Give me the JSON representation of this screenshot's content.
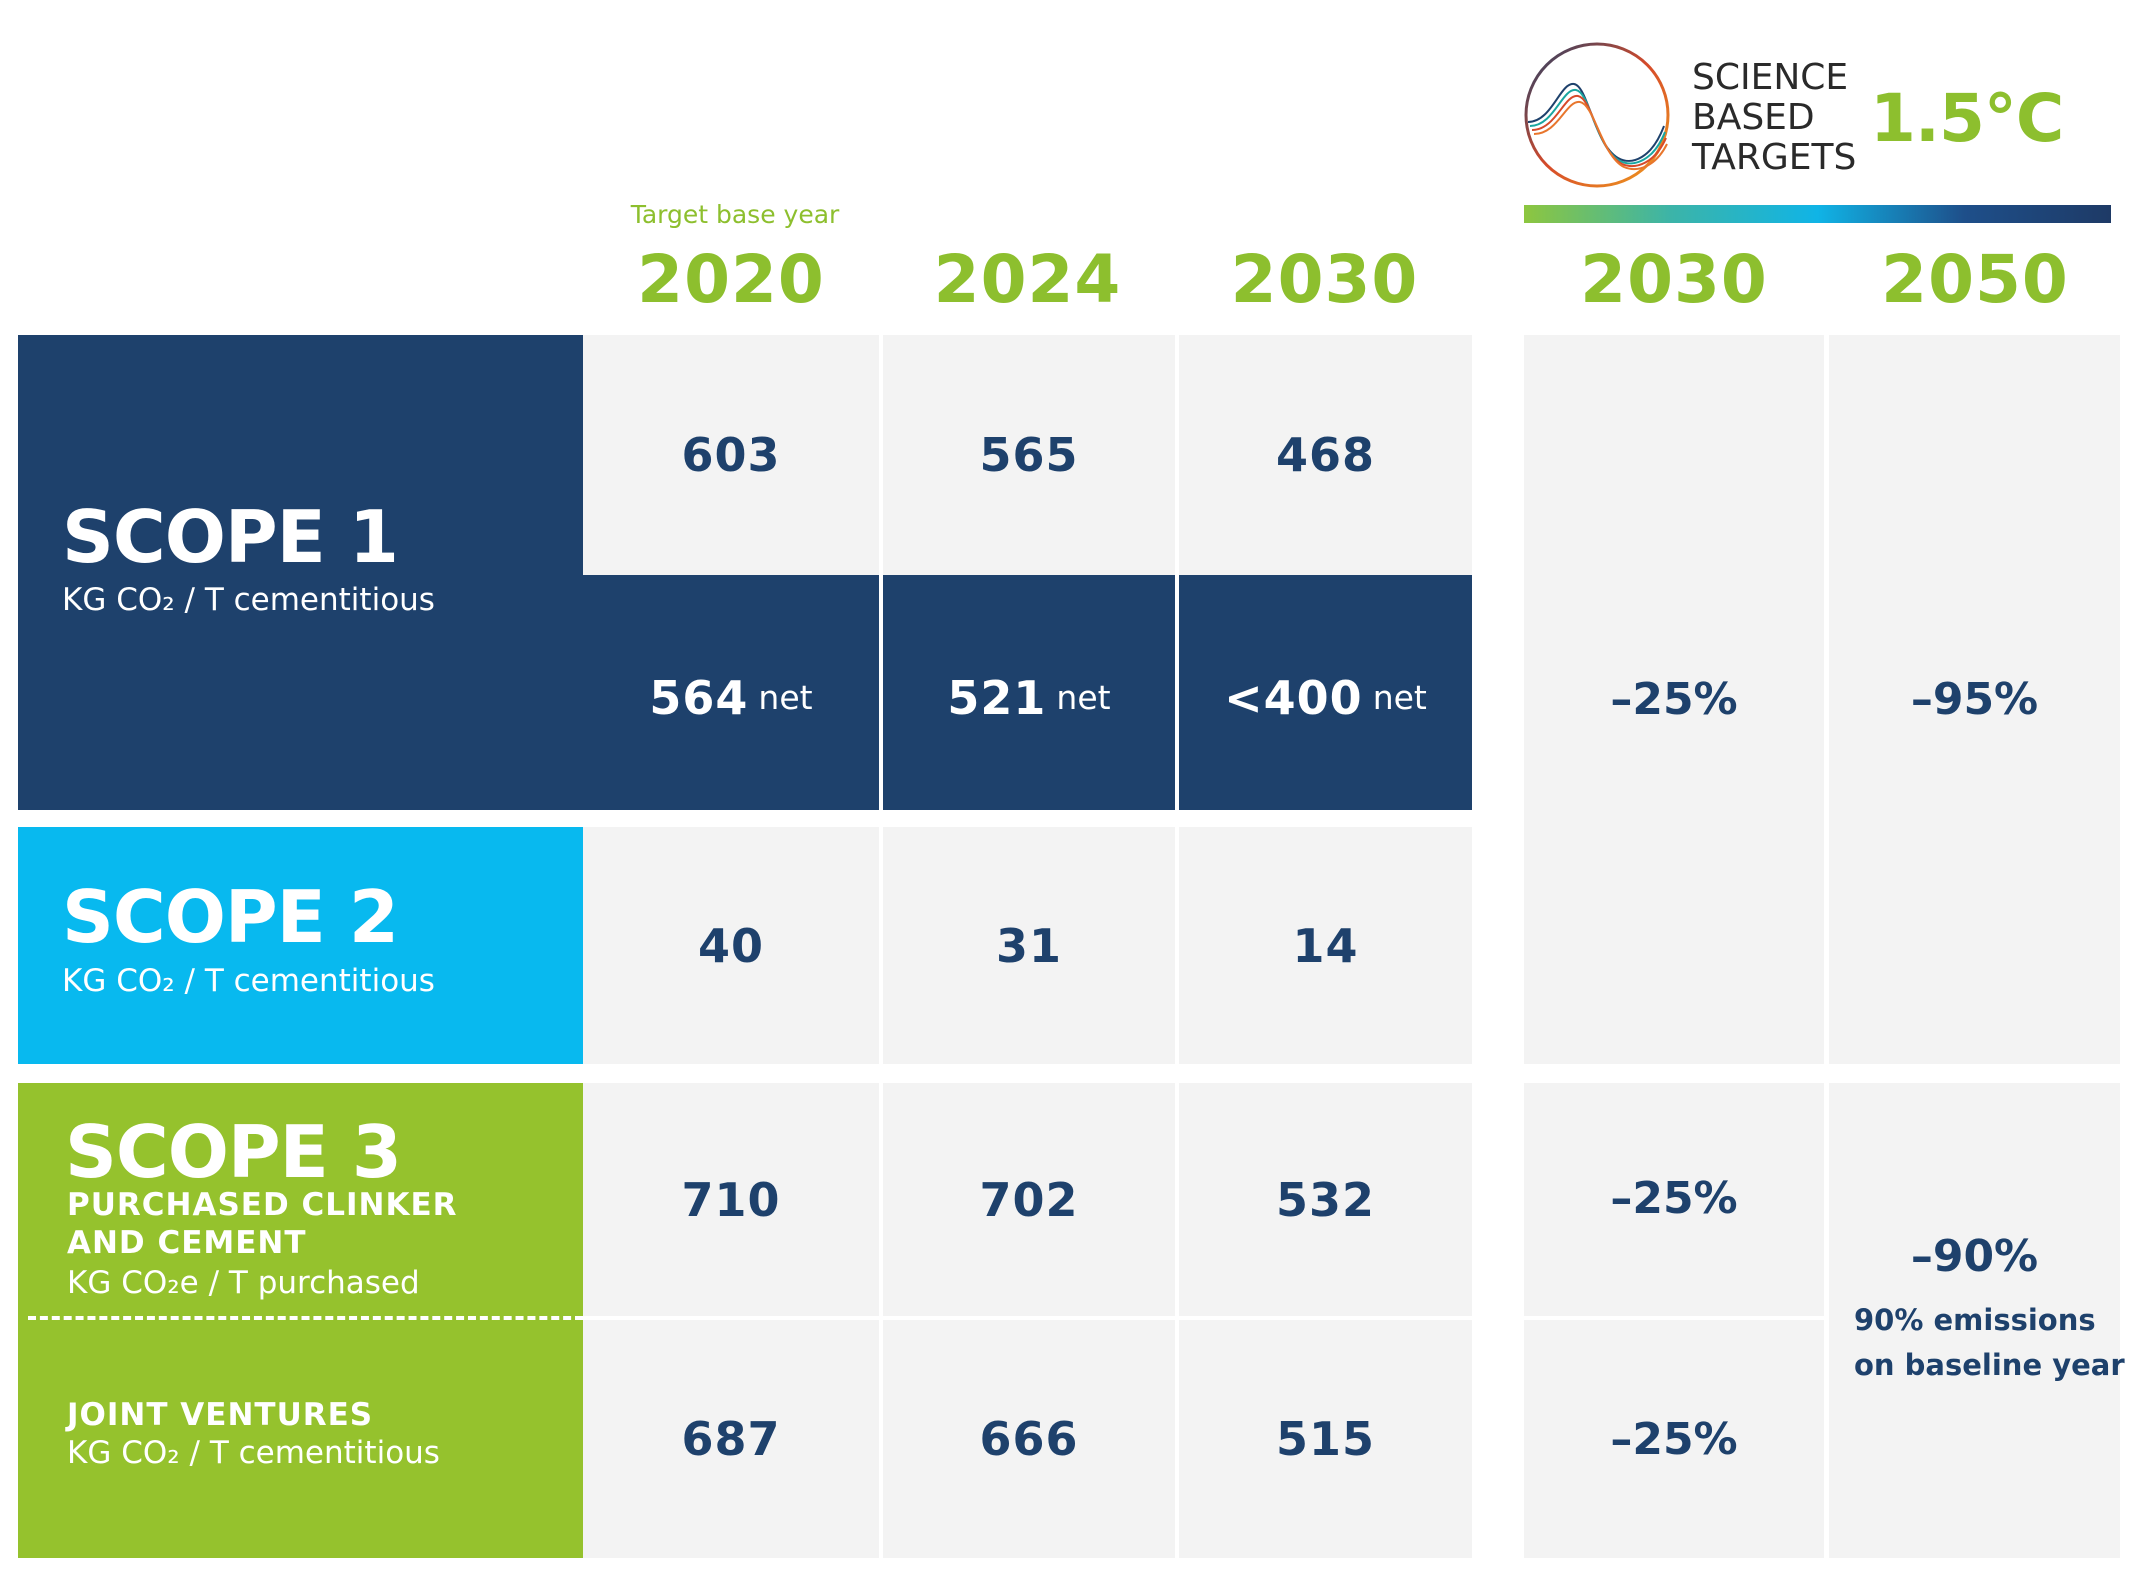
{
  "logo": {
    "lines": [
      "SCIENCE",
      "BASED",
      "TARGETS"
    ],
    "badge": "1.5°C"
  },
  "base_year_note": "Target base year",
  "years": [
    "2020",
    "2024",
    "2030"
  ],
  "sbt_years": [
    "2030",
    "2050"
  ],
  "scope1": {
    "title": "SCOPE 1",
    "unit": "KG CO₂ / T cementitious",
    "gross": [
      "603",
      "565",
      "468"
    ],
    "net": [
      "564",
      "521",
      "<400"
    ],
    "net_label": "net"
  },
  "scope2": {
    "title": "SCOPE 2",
    "unit": "KG CO₂ / T cementitious",
    "values": [
      "40",
      "31",
      "14"
    ]
  },
  "scope12_targets": [
    "–25%",
    "–95%"
  ],
  "scope3": {
    "title": "SCOPE 3",
    "sub_line1": "PURCHASED CLINKER",
    "sub_line2": "AND CEMENT",
    "unit": "KG CO₂e / T purchased",
    "values": [
      "710",
      "702",
      "532"
    ],
    "target_2030": "–25%"
  },
  "jv": {
    "title": "JOINT VENTURES",
    "unit": "KG CO₂ / T cementitious",
    "values": [
      "687",
      "666",
      "515"
    ],
    "target_2030": "–25%"
  },
  "scope3_target_2050": {
    "value": "–90%",
    "note_line1": "90% emissions",
    "note_line2": "on baseline year"
  },
  "colors": {
    "navy": "#1e416c",
    "cyan": "#08b9ef",
    "green": "#95c22d",
    "cell": "#f3f3f3"
  }
}
